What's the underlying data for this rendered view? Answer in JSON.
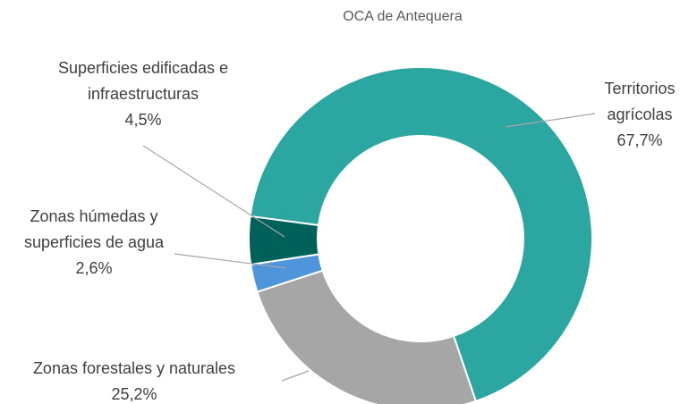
{
  "chart_data": {
    "type": "donut",
    "title": "OCA de Antequera",
    "categories": [
      "Territorios agrícolas",
      "Zonas forestales y naturales",
      "Zonas húmedas y superficies de agua",
      "Superficies edificadas e infraestructuras"
    ],
    "values": [
      67.7,
      25.2,
      2.6,
      4.5
    ],
    "value_labels": [
      "67,7%",
      "25,2%",
      "2,6%",
      "4,5%"
    ],
    "colors": [
      "#2ba6a0",
      "#a6a6a6",
      "#4f95dc",
      "#00605a"
    ]
  }
}
